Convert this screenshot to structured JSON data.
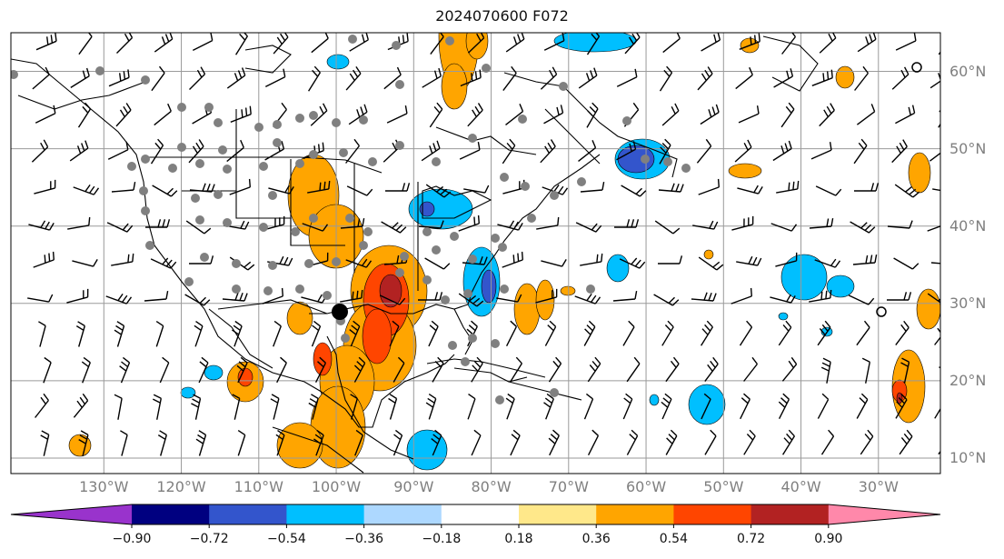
{
  "title": "2024070600 F072",
  "map": {
    "projection": "plate-carree",
    "lon_range": [
      -142,
      -22
    ],
    "lat_range": [
      8,
      65
    ],
    "lat_labels": [
      "60°N",
      "50°N",
      "40°N",
      "30°N",
      "20°N",
      "10°N"
    ],
    "lat_values": [
      60,
      50,
      40,
      30,
      20,
      10
    ],
    "lon_labels": [
      "130°W",
      "120°W",
      "110°W",
      "100°W",
      "90°W",
      "80°W",
      "70°W",
      "60°W",
      "50°W",
      "40°W",
      "30°W"
    ],
    "lon_values": [
      -130,
      -120,
      -110,
      -100,
      -90,
      -80,
      -70,
      -60,
      -50,
      -40,
      -30
    ],
    "grid": true,
    "land_outline_color": "#000000",
    "station_marker_color": "#808080",
    "wind_barb_color": "#000000"
  },
  "colorbar": {
    "orientation": "horizontal",
    "extend": "both",
    "tick_labels": [
      "−0.90",
      "−0.72",
      "−0.54",
      "−0.36",
      "−0.18",
      "0.18",
      "0.36",
      "0.54",
      "0.72",
      "0.90"
    ],
    "bounds": [
      -0.9,
      -0.72,
      -0.54,
      -0.36,
      -0.18,
      0.18,
      0.36,
      0.54,
      0.72,
      0.9
    ],
    "colors": [
      "#9933cc",
      "#000080",
      "#3355cc",
      "#00bfff",
      "#add8ff",
      "#ffffff",
      "#ffe88a",
      "#ffa500",
      "#ff4500",
      "#b22222",
      "#ff88aa"
    ]
  }
}
